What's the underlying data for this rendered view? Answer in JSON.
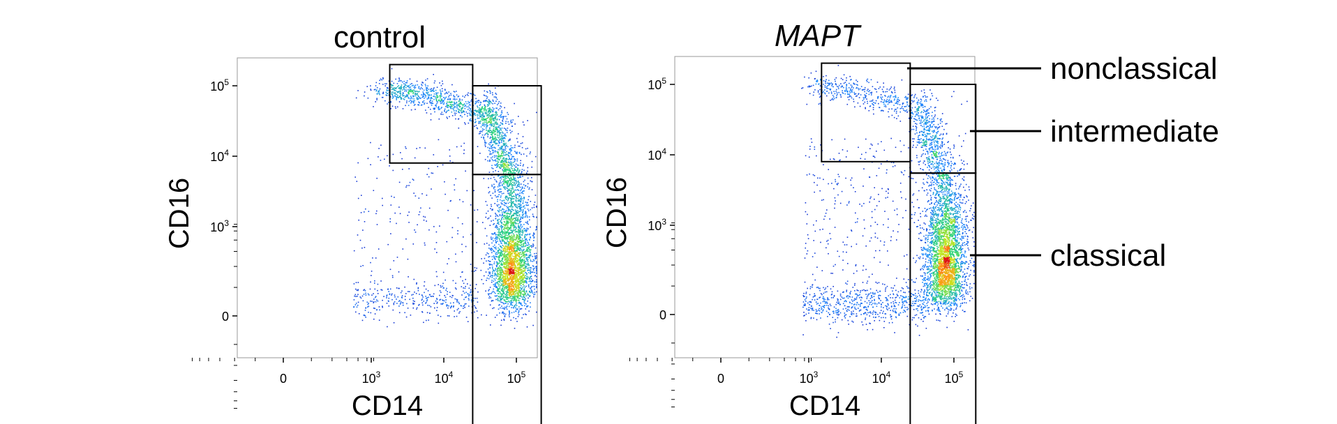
{
  "chart_data": [
    {
      "type": "scatter",
      "title": "control",
      "title_italic": false,
      "xlabel": "CD14",
      "ylabel": "CD16",
      "x_scale": "biexponential",
      "y_scale": "biexponential",
      "x_ticks": [
        {
          "value": 0,
          "base": "0",
          "exp": ""
        },
        {
          "value": 1000,
          "base": "10",
          "exp": "3"
        },
        {
          "value": 10000,
          "base": "10",
          "exp": "4"
        },
        {
          "value": 100000,
          "base": "10",
          "exp": "5"
        }
      ],
      "y_ticks": [
        {
          "value": 0,
          "base": "0",
          "exp": ""
        },
        {
          "value": 1000,
          "base": "10",
          "exp": "3"
        },
        {
          "value": 10000,
          "base": "10",
          "exp": "4"
        },
        {
          "value": 100000,
          "base": "10",
          "exp": "5"
        }
      ],
      "grid": false,
      "color_scale": "density (blue to red)",
      "gates": [
        {
          "name": "nonclassical",
          "x": [
            1800,
            25000
          ],
          "y": [
            8000,
            200000
          ]
        },
        {
          "name": "intermediate",
          "x": [
            25000,
            220000
          ],
          "y": [
            5500,
            100000
          ]
        },
        {
          "name": "classical",
          "x": [
            25000,
            220000
          ],
          "y": [
            -1800,
            5500
          ]
        }
      ],
      "populations": [
        {
          "gate": "nonclassical",
          "cx": 7000,
          "cy": 70000,
          "weight": 0.16
        },
        {
          "gate": "intermediate",
          "cx": 60000,
          "cy": 15000,
          "weight": 0.16
        },
        {
          "gate": "classical",
          "cx": 85000,
          "cy": 120,
          "weight": 0.58
        },
        {
          "gate": "none",
          "cx": 4000,
          "cy": 100,
          "weight": 0.1
        }
      ]
    },
    {
      "type": "scatter",
      "title": "MAPT",
      "title_italic": true,
      "xlabel": "CD14",
      "ylabel": "CD16",
      "x_scale": "biexponential",
      "y_scale": "biexponential",
      "x_ticks": [
        {
          "value": 0,
          "base": "0",
          "exp": ""
        },
        {
          "value": 1000,
          "base": "10",
          "exp": "3"
        },
        {
          "value": 10000,
          "base": "10",
          "exp": "4"
        },
        {
          "value": 100000,
          "base": "10",
          "exp": "5"
        }
      ],
      "y_ticks": [
        {
          "value": 0,
          "base": "0",
          "exp": ""
        },
        {
          "value": 1000,
          "base": "10",
          "exp": "3"
        },
        {
          "value": 10000,
          "base": "10",
          "exp": "4"
        },
        {
          "value": 100000,
          "base": "10",
          "exp": "5"
        }
      ],
      "grid": false,
      "color_scale": "density (blue to red)",
      "gates": [
        {
          "name": "nonclassical",
          "x": [
            1500,
            25000
          ],
          "y": [
            8000,
            200000
          ]
        },
        {
          "name": "intermediate",
          "x": [
            25000,
            200000
          ],
          "y": [
            5500,
            100000
          ]
        },
        {
          "name": "classical",
          "x": [
            25000,
            200000
          ],
          "y": [
            -1800,
            5500
          ]
        }
      ],
      "populations": [
        {
          "gate": "nonclassical",
          "cx": 5000,
          "cy": 80000,
          "weight": 0.08
        },
        {
          "gate": "intermediate",
          "cx": 50000,
          "cy": 15000,
          "weight": 0.12
        },
        {
          "gate": "classical",
          "cx": 75000,
          "cy": 120,
          "weight": 0.62
        },
        {
          "gate": "none",
          "cx": 6000,
          "cy": 60,
          "weight": 0.18
        }
      ]
    }
  ],
  "gate_labels": [
    "nonclassical",
    "intermediate",
    "classical"
  ]
}
